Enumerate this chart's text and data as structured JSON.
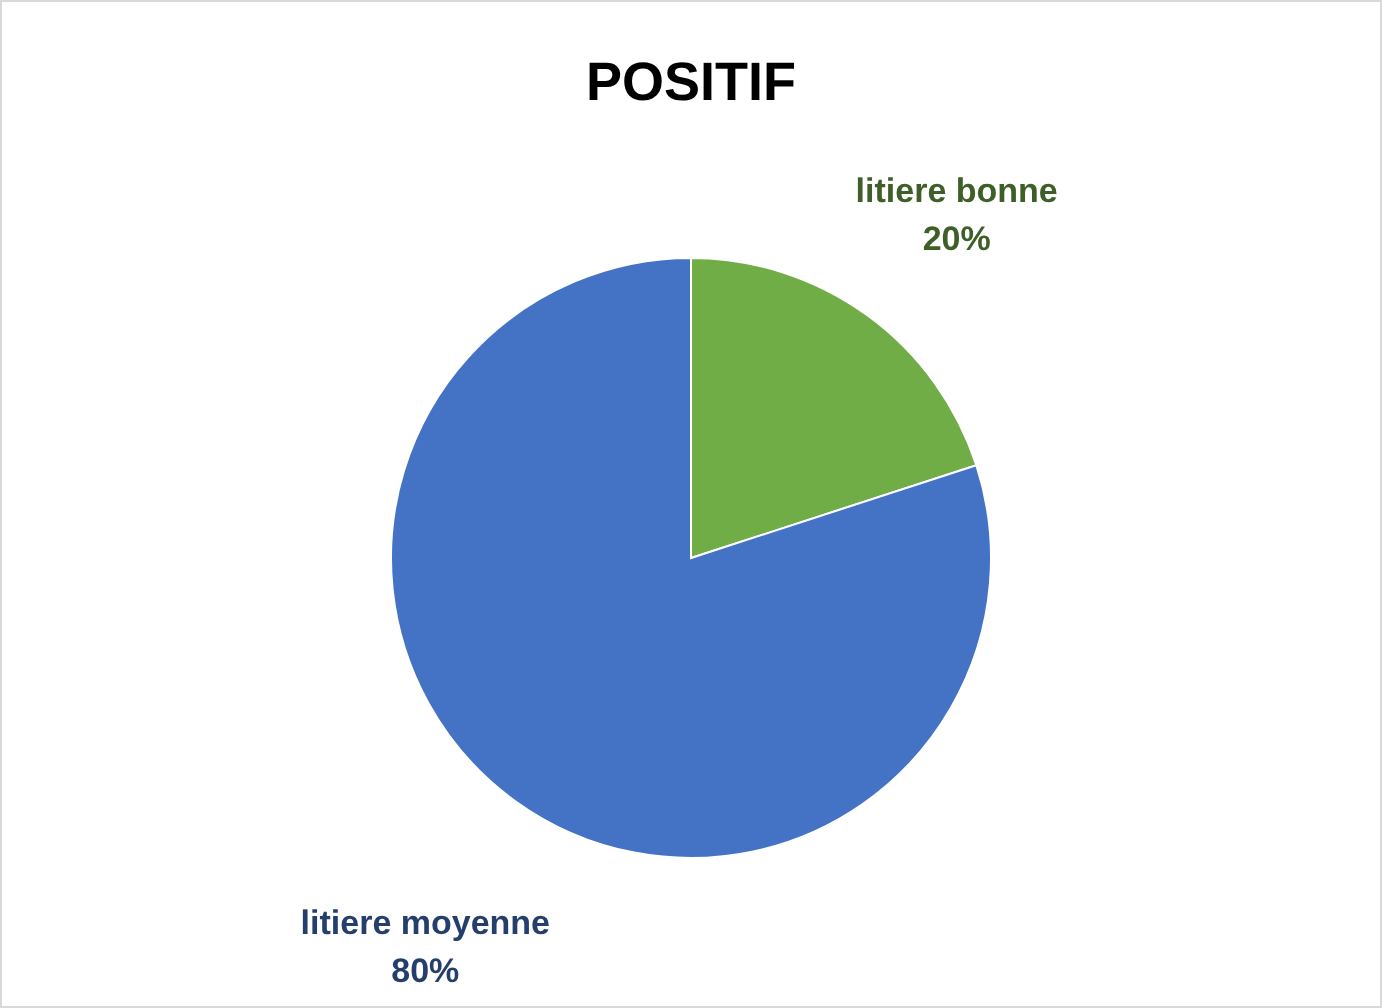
{
  "chart_data": {
    "type": "pie",
    "title": "POSITIF",
    "categories": [
      "litiere bonne",
      "litiere moyenne"
    ],
    "values": [
      20,
      80
    ],
    "value_labels": [
      "20%",
      "80%"
    ],
    "colors": [
      "#70ad47",
      "#4472c4"
    ]
  }
}
